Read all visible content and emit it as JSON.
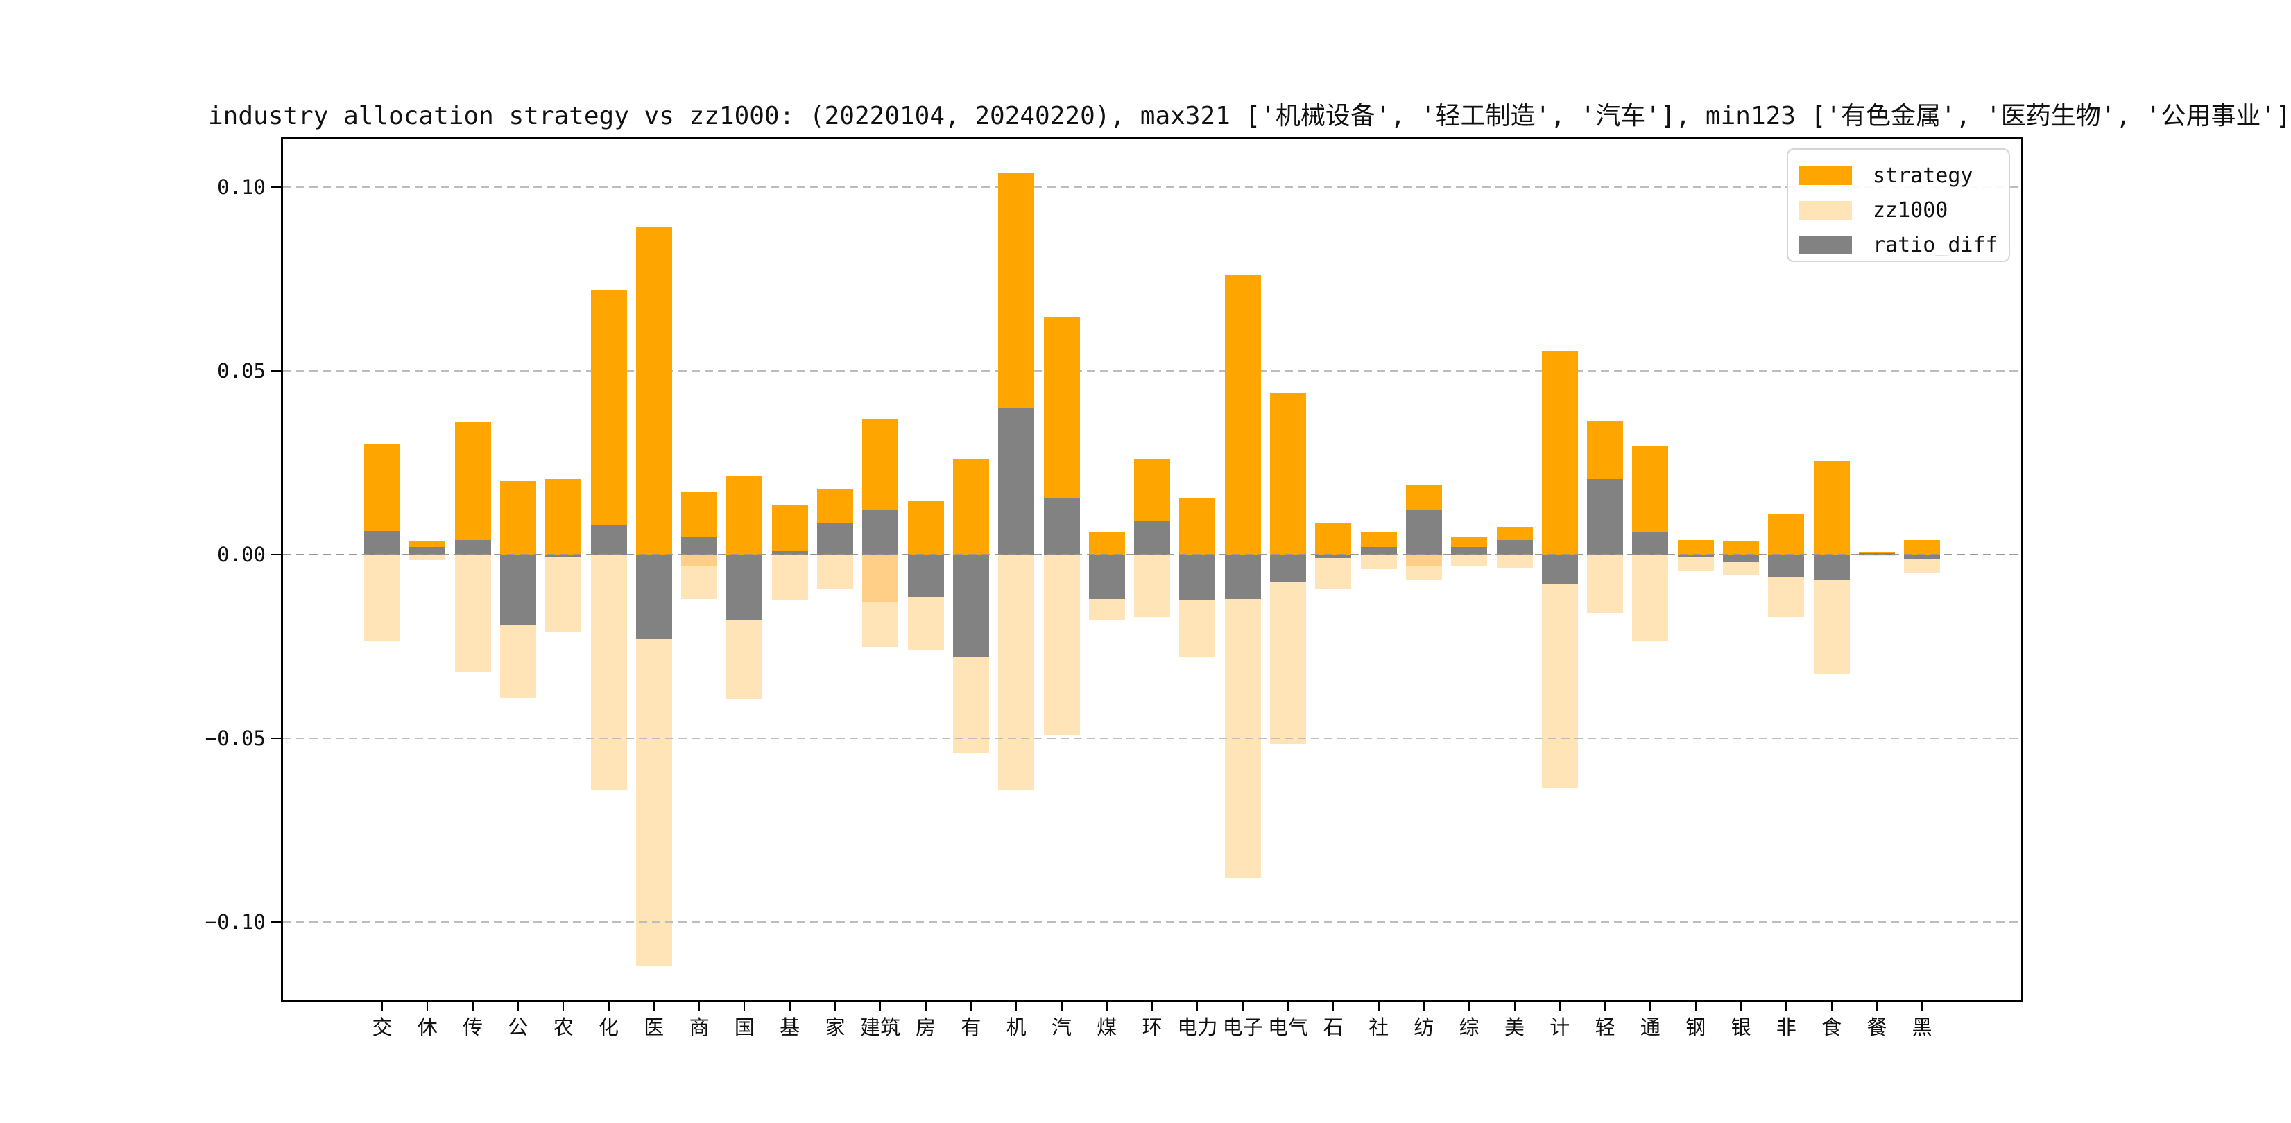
{
  "title": "industry allocation strategy vs zz1000: (20220104, 20240220), max321 ['机械设备', '轻工制造', '汽车'], min123 ['有色金属', '医药生物', '公用事业']",
  "legend": {
    "position": "upper right",
    "items": [
      {
        "label": "strategy",
        "color": "#FFA500"
      },
      {
        "label": "zz1000",
        "color": "#FFE4B8"
      },
      {
        "label": "ratio_diff",
        "color": "#828282"
      }
    ]
  },
  "y_axis": {
    "ticks": [
      {
        "label": "0.10",
        "value": 0.1
      },
      {
        "label": "0.05",
        "value": 0.05
      },
      {
        "label": "0.00",
        "value": 0.0
      },
      {
        "label": "−0.05",
        "value": -0.05
      },
      {
        "label": "−0.10",
        "value": -0.1
      }
    ]
  },
  "chart_data": {
    "type": "bar",
    "title": "industry allocation strategy vs zz1000: (20220104, 20240220), max321 ['机械设备', '轻工制造', '汽车'], min123 ['有色金属', '医药生物', '公用事业']",
    "xlabel": "",
    "ylabel": "",
    "ylim": [
      -0.1217,
      0.1136
    ],
    "grid": "horizontal dashed at 0.10, 0.05, 0.00, -0.05, -0.10",
    "legend_position": "upper right",
    "categories": [
      "交",
      "休",
      "传",
      "公",
      "农",
      "化",
      "医",
      "商",
      "国",
      "基",
      "家",
      "建筑",
      "房",
      "有",
      "机",
      "汽",
      "煤",
      "环",
      "电力",
      "电子",
      "电气",
      "石",
      "社",
      "纺",
      "综",
      "美",
      "计",
      "轻",
      "通",
      "钢",
      "银",
      "非",
      "食",
      "餐",
      "黑"
    ],
    "series": [
      {
        "name": "strategy",
        "color": "#FFA500",
        "values": [
          0.03,
          0.0035,
          0.036,
          0.02,
          0.0205,
          0.072,
          0.089,
          0.017,
          0.0215,
          0.0135,
          0.018,
          0.037,
          0.0145,
          0.026,
          0.104,
          0.0645,
          0.006,
          0.026,
          0.0155,
          0.076,
          0.044,
          0.0085,
          0.006,
          0.019,
          0.005,
          0.0075,
          0.0555,
          0.0365,
          0.0295,
          0.004,
          0.0035,
          0.011,
          0.0255,
          0.0005,
          0.004
        ]
      },
      {
        "name": "zz1000",
        "color": "#FFE4B8",
        "values": [
          -0.0235,
          -0.0015,
          -0.032,
          -0.039,
          -0.021,
          -0.064,
          -0.112,
          -0.012,
          -0.0395,
          -0.0125,
          -0.0095,
          -0.025,
          -0.026,
          -0.054,
          -0.064,
          -0.049,
          -0.018,
          -0.017,
          -0.028,
          -0.088,
          -0.0515,
          -0.0095,
          -0.004,
          -0.007,
          -0.003,
          -0.0035,
          -0.0635,
          -0.016,
          -0.0235,
          -0.0045,
          -0.0055,
          -0.017,
          -0.0325,
          -0.0003,
          -0.005
        ]
      },
      {
        "name": "ratio_diff",
        "color": "#828282",
        "values": [
          0.0065,
          0.002,
          0.004,
          -0.019,
          -0.0005,
          0.008,
          -0.023,
          0.005,
          -0.018,
          0.001,
          0.0085,
          0.012,
          -0.0115,
          -0.028,
          0.04,
          0.0155,
          -0.012,
          0.009,
          -0.0125,
          -0.012,
          -0.0075,
          -0.001,
          0.002,
          0.012,
          0.002,
          0.004,
          -0.008,
          0.0205,
          0.006,
          -0.0005,
          -0.002,
          -0.006,
          -0.007,
          0.0003,
          -0.0012
        ]
      }
    ],
    "overlap_bands": {
      "7": 0.003,
      "11": 0.013,
      "23": 0.003
    },
    "overlap_color": "#FFCE87"
  }
}
